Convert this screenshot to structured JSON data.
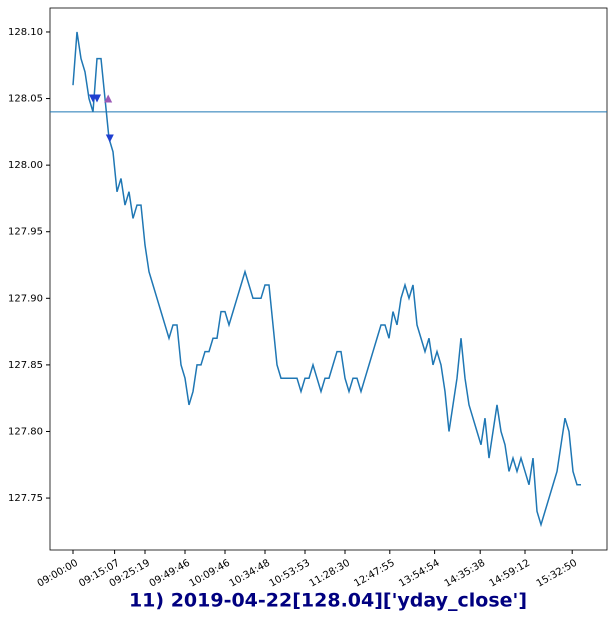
{
  "chart_data": {
    "type": "line",
    "title": "11) 2019-04-22[128.04]['yday_close']",
    "x": [
      0,
      5,
      10,
      15,
      20,
      25,
      30,
      35,
      40,
      45,
      50,
      55,
      60,
      65,
      70,
      75,
      80,
      85,
      90,
      95,
      100,
      105,
      110,
      115,
      120,
      125,
      130,
      135,
      140,
      145,
      150,
      155,
      160,
      165,
      170,
      175,
      180,
      185,
      190,
      195,
      200,
      205,
      210,
      215,
      220,
      225,
      230,
      235,
      240,
      245,
      250,
      255,
      260,
      265,
      270,
      275,
      280,
      285,
      290,
      295,
      300,
      305,
      310,
      315,
      320,
      325,
      330,
      335,
      340,
      345,
      350,
      355,
      360,
      365,
      370,
      375,
      380,
      385,
      390,
      395,
      400,
      405,
      410,
      415,
      420,
      425,
      430,
      435,
      440,
      445,
      450,
      455,
      460,
      465,
      470,
      475,
      480,
      485,
      490,
      495,
      500,
      505,
      510,
      515,
      520,
      525,
      530,
      535,
      540,
      545,
      550,
      555,
      560,
      565,
      570,
      575,
      580,
      585,
      590,
      595,
      600,
      605,
      610,
      615,
      620,
      625,
      630,
      635
    ],
    "series": [
      {
        "color": "#1f77b4",
        "values": [
          128.06,
          128.1,
          128.08,
          128.07,
          128.05,
          128.04,
          128.08,
          128.08,
          128.05,
          128.02,
          128.01,
          127.98,
          127.99,
          127.97,
          127.98,
          127.96,
          127.97,
          127.97,
          127.94,
          127.92,
          127.91,
          127.9,
          127.89,
          127.88,
          127.87,
          127.88,
          127.88,
          127.85,
          127.84,
          127.82,
          127.83,
          127.85,
          127.85,
          127.86,
          127.86,
          127.87,
          127.87,
          127.89,
          127.89,
          127.88,
          127.89,
          127.9,
          127.91,
          127.92,
          127.91,
          127.9,
          127.9,
          127.9,
          127.91,
          127.91,
          127.88,
          127.85,
          127.84,
          127.84,
          127.84,
          127.84,
          127.84,
          127.83,
          127.84,
          127.84,
          127.85,
          127.84,
          127.83,
          127.84,
          127.84,
          127.85,
          127.86,
          127.86,
          127.84,
          127.83,
          127.84,
          127.84,
          127.83,
          127.84,
          127.85,
          127.86,
          127.87,
          127.88,
          127.88,
          127.87,
          127.89,
          127.88,
          127.9,
          127.91,
          127.9,
          127.91,
          127.88,
          127.87,
          127.86,
          127.87,
          127.85,
          127.86,
          127.85,
          127.83,
          127.8,
          127.82,
          127.84,
          127.87,
          127.84,
          127.82,
          127.81,
          127.8,
          127.79,
          127.81,
          127.78,
          127.8,
          127.82,
          127.8,
          127.79,
          127.77,
          127.78,
          127.77,
          127.78,
          127.77,
          127.76,
          127.78,
          127.74,
          127.73,
          127.74,
          127.75,
          127.76,
          127.77,
          127.79,
          127.81,
          127.8,
          127.77,
          127.76,
          127.76
        ]
      }
    ],
    "hline": {
      "value": 128.04,
      "color": "#1f77b4"
    },
    "markers": [
      {
        "x": 25,
        "y": 128.05,
        "shape": "down",
        "color": "#1f3fd0"
      },
      {
        "x": 30,
        "y": 128.05,
        "shape": "down",
        "color": "#1f3fd0"
      },
      {
        "x": 46,
        "y": 128.02,
        "shape": "down",
        "color": "#1f3fd0"
      },
      {
        "x": 44,
        "y": 128.05,
        "shape": "up",
        "color": "#9b59b6"
      }
    ],
    "xlim": [
      -28.75,
      667.5
    ],
    "ylim": [
      127.711,
      128.118
    ],
    "xticks": [
      {
        "value": 0,
        "label": "09:00:00"
      },
      {
        "value": 52,
        "label": "09:15:07"
      },
      {
        "value": 90,
        "label": "09:25:19"
      },
      {
        "value": 140,
        "label": "09:49:46"
      },
      {
        "value": 190,
        "label": "10:09:46"
      },
      {
        "value": 240,
        "label": "10:34:48"
      },
      {
        "value": 290,
        "label": "10:53:53"
      },
      {
        "value": 340,
        "label": "11:28:30"
      },
      {
        "value": 396,
        "label": "12:47:55"
      },
      {
        "value": 452,
        "label": "13:54:54"
      },
      {
        "value": 509,
        "label": "14:35:38"
      },
      {
        "value": 565,
        "label": "14:59:12"
      },
      {
        "value": 624,
        "label": "15:32:50"
      }
    ],
    "yticks": [
      {
        "value": 127.75,
        "label": "127.75"
      },
      {
        "value": 127.8,
        "label": "127.80"
      },
      {
        "value": 127.85,
        "label": "127.85"
      },
      {
        "value": 127.9,
        "label": "127.90"
      },
      {
        "value": 127.95,
        "label": "127.95"
      },
      {
        "value": 128.0,
        "label": "128.00"
      },
      {
        "value": 128.05,
        "label": "128.05"
      },
      {
        "value": 128.1,
        "label": "128.10"
      }
    ]
  }
}
